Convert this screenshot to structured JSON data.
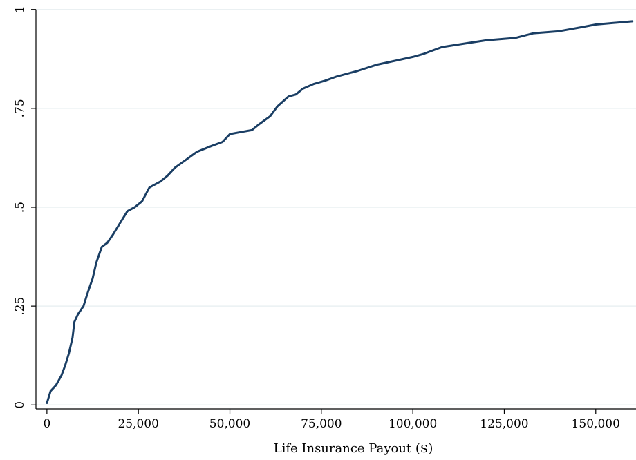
{
  "chart_data": {
    "type": "line",
    "title": "",
    "xlabel": "Life Insurance Payout ($)",
    "ylabel": "",
    "xlim": [
      -3000,
      161000
    ],
    "ylim": [
      -0.01,
      1.01
    ],
    "grid": true,
    "x_ticks": [
      0,
      25000,
      50000,
      75000,
      100000,
      125000,
      150000
    ],
    "x_tick_labels": [
      "0",
      "25,000",
      "50,000",
      "75,000",
      "100,000",
      "125,000",
      "150,000"
    ],
    "y_ticks": [
      0,
      0.25,
      0.5,
      0.75,
      1
    ],
    "y_tick_labels": [
      "0",
      ".25",
      ".5",
      ".75",
      "1"
    ],
    "colors": {
      "line": "#1a3e64",
      "grid": "#eaf0f2"
    },
    "series": [
      {
        "values_xy": [
          [
            0,
            0.005
          ],
          [
            1000,
            0.035
          ],
          [
            2500,
            0.05
          ],
          [
            4000,
            0.075
          ],
          [
            5000,
            0.1
          ],
          [
            6000,
            0.13
          ],
          [
            7000,
            0.17
          ],
          [
            7500,
            0.21
          ],
          [
            8500,
            0.23
          ],
          [
            10000,
            0.25
          ],
          [
            11000,
            0.28
          ],
          [
            12500,
            0.32
          ],
          [
            13500,
            0.36
          ],
          [
            15000,
            0.4
          ],
          [
            16500,
            0.41
          ],
          [
            18000,
            0.43
          ],
          [
            20000,
            0.46
          ],
          [
            22000,
            0.49
          ],
          [
            24000,
            0.5
          ],
          [
            26000,
            0.515
          ],
          [
            28000,
            0.55
          ],
          [
            31000,
            0.565
          ],
          [
            33000,
            0.58
          ],
          [
            35000,
            0.6
          ],
          [
            38000,
            0.62
          ],
          [
            41000,
            0.64
          ],
          [
            45000,
            0.655
          ],
          [
            48000,
            0.665
          ],
          [
            50000,
            0.685
          ],
          [
            53000,
            0.69
          ],
          [
            56000,
            0.695
          ],
          [
            58000,
            0.71
          ],
          [
            61000,
            0.73
          ],
          [
            63000,
            0.755
          ],
          [
            66000,
            0.78
          ],
          [
            68000,
            0.785
          ],
          [
            70000,
            0.8
          ],
          [
            73000,
            0.812
          ],
          [
            76000,
            0.82
          ],
          [
            79000,
            0.83
          ],
          [
            85000,
            0.845
          ],
          [
            90000,
            0.86
          ],
          [
            96000,
            0.872
          ],
          [
            100000,
            0.88
          ],
          [
            103000,
            0.888
          ],
          [
            108000,
            0.905
          ],
          [
            115000,
            0.915
          ],
          [
            120000,
            0.922
          ],
          [
            128000,
            0.928
          ],
          [
            133000,
            0.94
          ],
          [
            140000,
            0.945
          ],
          [
            146000,
            0.955
          ],
          [
            150000,
            0.962
          ],
          [
            160000,
            0.97
          ]
        ]
      }
    ]
  }
}
